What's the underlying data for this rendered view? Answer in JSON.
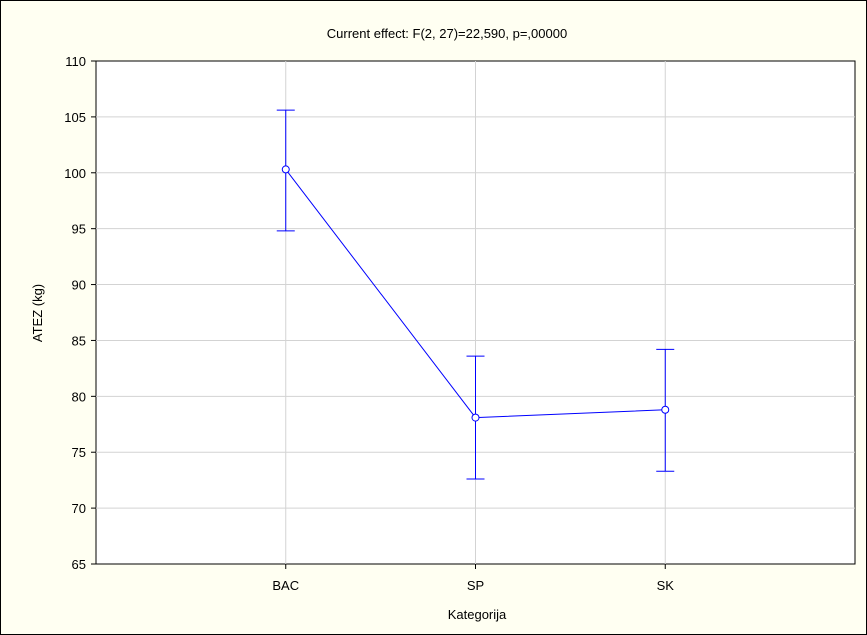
{
  "chart_data": {
    "type": "line",
    "title": "Current effect: F(2, 27)=22,590, p=,00000",
    "xlabel": "Kategorija",
    "ylabel": "ATEZ (kg)",
    "categories": [
      "BAC",
      "SP",
      "SK"
    ],
    "ylim": [
      65,
      110
    ],
    "yticks": [
      65,
      70,
      75,
      80,
      85,
      90,
      95,
      100,
      105,
      110
    ],
    "series": [
      {
        "values": [
          100.3,
          78.1,
          78.8
        ],
        "error_upper": [
          105.6,
          83.6,
          84.2
        ],
        "error_lower": [
          94.8,
          72.6,
          73.3
        ]
      }
    ],
    "grid": true,
    "colors": {
      "series": "#0000ff",
      "grid": "#d3d3d3",
      "plot_bg": "#ffffff",
      "frame_bg": "#fffff2"
    }
  }
}
